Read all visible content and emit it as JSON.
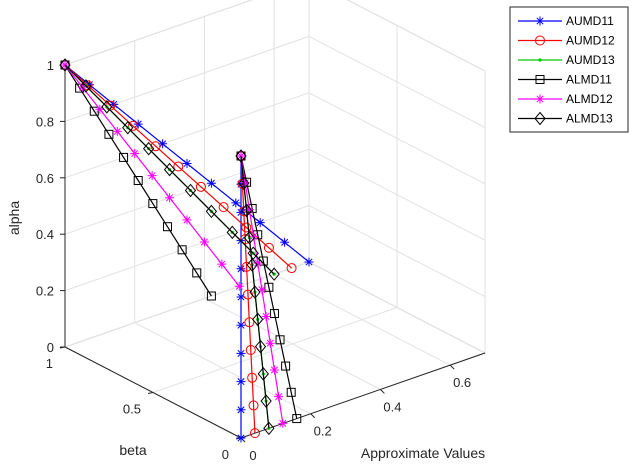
{
  "chart_data": {
    "type": "line3d",
    "xlabel": "Approximate Values",
    "ylabel": "beta",
    "zlabel": "alpha",
    "x_ticks": [
      "0",
      "0.2",
      "0.4",
      "0.6"
    ],
    "y_ticks": [
      "0",
      "0.5",
      "1"
    ],
    "z_ticks": [
      "0",
      "0.2",
      "0.4",
      "0.6",
      "0.8",
      "1"
    ],
    "xlim": [
      0,
      0.7
    ],
    "ylim": [
      0,
      1
    ],
    "zlim": [
      0,
      1
    ],
    "grid": true,
    "legend_position": "top-right",
    "apex": {
      "x": 0,
      "y": 1,
      "z": 1
    },
    "alpha_values": [
      0,
      0.1,
      0.2,
      0.3,
      0.4,
      0.5,
      0.6,
      0.7,
      0.8,
      0.9,
      1.0
    ],
    "series": [
      {
        "name": "AUMD11",
        "color": "#0000ff",
        "marker": "asterisk",
        "end_beta0": 0.0,
        "end_beta1": 0.7
      },
      {
        "name": "AUMD12",
        "color": "#ff0000",
        "marker": "circle",
        "end_beta0": 0.04,
        "end_beta1": 0.65
      },
      {
        "name": "AUMD13",
        "color": "#00c800",
        "marker": "point",
        "end_beta0": 0.08,
        "end_beta1": 0.6
      },
      {
        "name": "ALMD11",
        "color": "#000000",
        "marker": "square",
        "end_beta0": 0.16,
        "end_beta1": 0.42
      },
      {
        "name": "ALMD12",
        "color": "#ff00ff",
        "marker": "asterisk",
        "end_beta0": 0.12,
        "end_beta1": 0.5
      },
      {
        "name": "ALMD13",
        "color": "#000000",
        "marker": "diamond",
        "end_beta0": 0.08,
        "end_beta1": 0.6
      }
    ]
  }
}
